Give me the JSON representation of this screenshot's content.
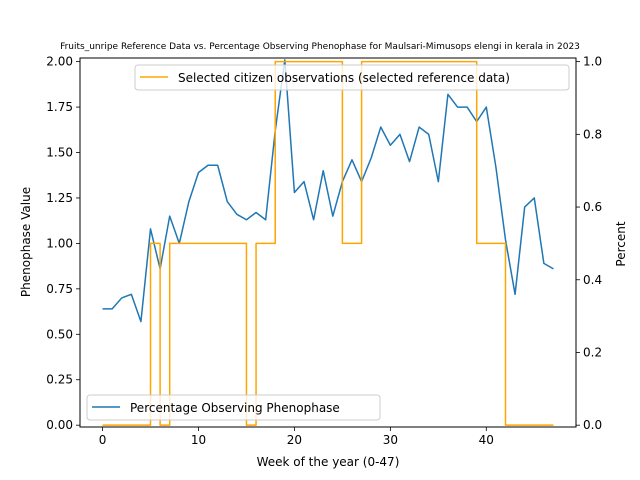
{
  "chart_data": {
    "type": "line",
    "title": "Fruits_unripe Reference Data vs. Percentage Observing Phenophase for Maulsari-Mimusops elengi in kerala in 2023",
    "xlabel": "Week of the year (0-47)",
    "ylabel_left": "Phenophase Value",
    "ylabel_right": "Percent",
    "xlim": [
      -2.35,
      49.35
    ],
    "ylim_left": [
      -0.01,
      2.02
    ],
    "ylim_right": [
      -0.005,
      1.01
    ],
    "x_ticks": [
      0,
      10,
      20,
      30,
      40
    ],
    "y_ticks_left": [
      "0.00",
      "0.25",
      "0.50",
      "0.75",
      "1.00",
      "1.25",
      "1.50",
      "1.75",
      "2.00"
    ],
    "y_ticks_right": [
      "0.0",
      "0.2",
      "0.4",
      "0.6",
      "0.8",
      "1.0"
    ],
    "grid": false,
    "legend": [
      {
        "name": "Selected citizen observations (selected reference data)",
        "placement": "top-right",
        "color": "#ffa500"
      },
      {
        "name": "Percentage Observing Phenophase",
        "placement": "lower-left",
        "color": "#1f77b4"
      }
    ],
    "series": [
      {
        "name": "Percentage Observing Phenophase",
        "axis": "left",
        "color": "#1f77b4",
        "x": [
          0,
          1,
          2,
          3,
          4,
          5,
          6,
          7,
          8,
          9,
          10,
          11,
          12,
          13,
          14,
          15,
          16,
          17,
          18,
          19,
          20,
          21,
          22,
          23,
          24,
          25,
          26,
          27,
          28,
          29,
          30,
          31,
          32,
          33,
          34,
          35,
          36,
          37,
          38,
          39,
          40,
          41,
          42,
          43,
          44,
          45,
          46,
          47
        ],
        "values": [
          0.64,
          0.64,
          0.7,
          0.72,
          0.57,
          1.08,
          0.86,
          1.15,
          1.0,
          1.23,
          1.39,
          1.43,
          1.43,
          1.23,
          1.16,
          1.13,
          1.17,
          1.13,
          1.62,
          2.01,
          1.28,
          1.34,
          1.13,
          1.4,
          1.15,
          1.34,
          1.46,
          1.34,
          1.47,
          1.64,
          1.54,
          1.6,
          1.45,
          1.64,
          1.6,
          1.34,
          1.82,
          1.75,
          1.75,
          1.67,
          1.75,
          1.42,
          1.02,
          0.72,
          1.2,
          1.25,
          0.89,
          0.86
        ]
      },
      {
        "name": "Selected citizen observations (selected reference data)",
        "axis": "right",
        "color": "#ffa500",
        "x": [
          0,
          1,
          2,
          3,
          4,
          5,
          6,
          7,
          8,
          9,
          10,
          11,
          12,
          13,
          14,
          15,
          16,
          17,
          18,
          19,
          20,
          21,
          22,
          23,
          24,
          25,
          26,
          27,
          28,
          29,
          30,
          31,
          32,
          33,
          34,
          35,
          36,
          37,
          38,
          39,
          40,
          41,
          42,
          43,
          44,
          45,
          46,
          47
        ],
        "values": [
          0,
          0,
          0,
          0,
          0,
          0.5,
          0,
          0.5,
          0.5,
          0.5,
          0.5,
          0.5,
          0.5,
          0.5,
          0.5,
          0,
          0.5,
          0.5,
          1,
          1,
          1,
          1,
          1,
          1,
          1,
          0.5,
          0.5,
          1,
          1,
          1,
          1,
          1,
          1,
          1,
          1,
          1,
          1,
          1,
          1,
          0.5,
          0.5,
          0.5,
          0,
          0,
          0,
          0,
          0,
          0
        ]
      }
    ]
  }
}
